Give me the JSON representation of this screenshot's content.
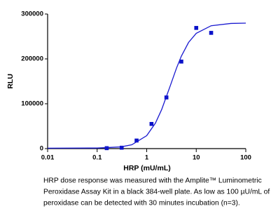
{
  "chart_data": {
    "type": "scatter",
    "x_label": "HRP (mU/mL)",
    "y_label": "RLU",
    "log_x": true,
    "xlim": [
      0.01,
      100
    ],
    "xticks": [
      0.01,
      0.1,
      1,
      10,
      100
    ],
    "ylim": [
      0,
      300000
    ],
    "yticks": [
      0,
      100000,
      200000,
      300000
    ],
    "series": [
      {
        "name": "HRP dose response",
        "kind": "points",
        "color": "#0a12c8",
        "x": [
          0.156,
          0.3125,
          0.625,
          1.25,
          2.5,
          5,
          10,
          20
        ],
        "values": [
          1000,
          2000,
          18000,
          55000,
          114000,
          194000,
          269000,
          258000
        ]
      },
      {
        "name": "Fit",
        "kind": "curve",
        "color": "#1a1ad0",
        "x": [
          0.01,
          0.1,
          0.3,
          0.5,
          1,
          1.5,
          2,
          3,
          4,
          5,
          7,
          10,
          20,
          50,
          100
        ],
        "values": [
          1000,
          1300,
          3800,
          8500,
          28900,
          56800,
          86800,
          140500,
          179600,
          206000,
          236700,
          257000,
          273900,
          279000,
          279700
        ]
      }
    ],
    "caption": [
      "HRP dose response was measured with the Amplite™ Luminometric",
      "Peroxidase Assay Kit in a black 384-well plate. As low as 100 µU/mL of",
      "peroxidase can be detected with 30 minutes incubation (n=3)."
    ]
  }
}
